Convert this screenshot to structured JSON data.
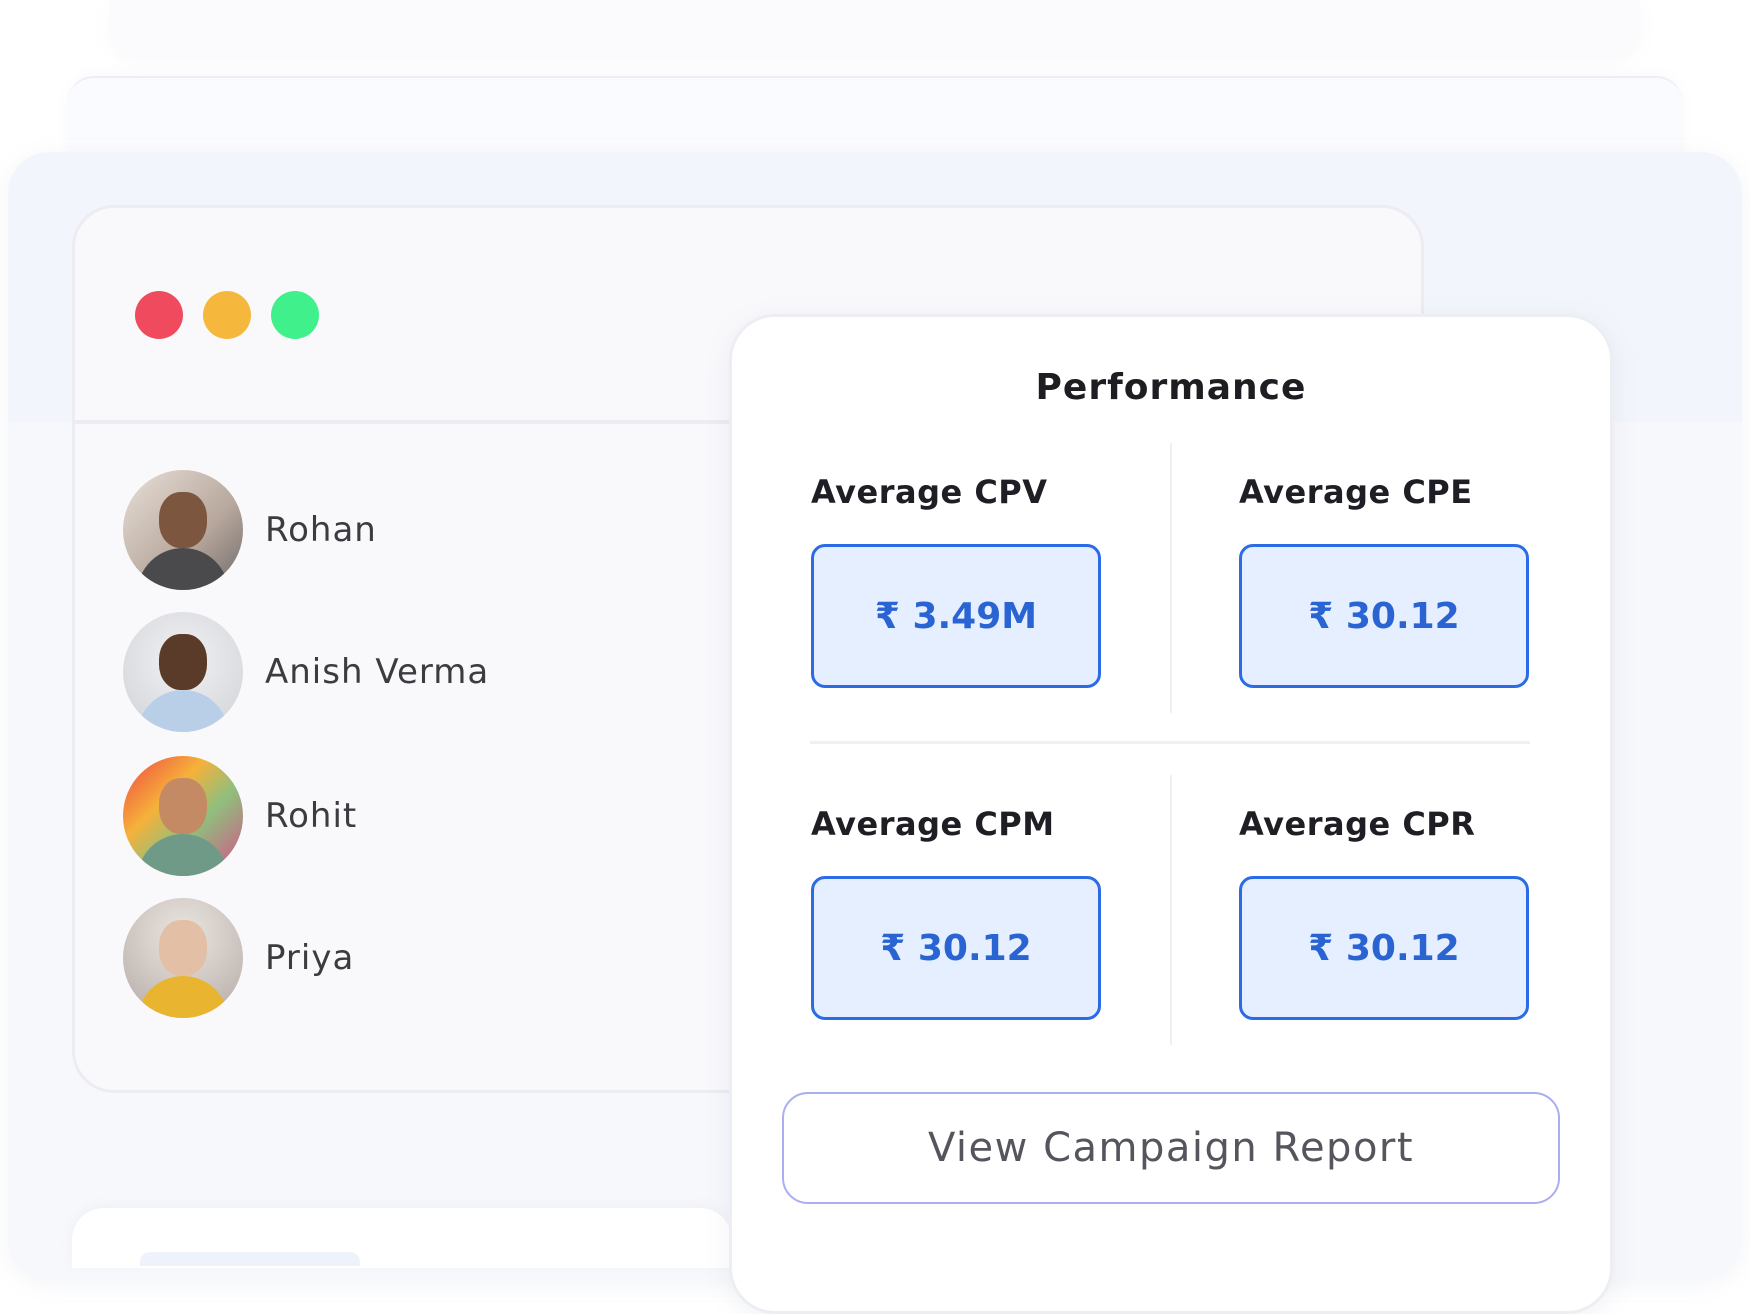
{
  "window_controls": [
    "close",
    "minimize",
    "maximize"
  ],
  "users": [
    {
      "name": "Rohan"
    },
    {
      "name": "Anish Verma"
    },
    {
      "name": "Rohit"
    },
    {
      "name": "Priya"
    }
  ],
  "performance": {
    "title": "Performance",
    "metrics": [
      {
        "label": "Average CPV",
        "value": "₹ 3.49M"
      },
      {
        "label": "Average CPE",
        "value": "₹ 30.12"
      },
      {
        "label": "Average CPM",
        "value": "₹ 30.12"
      },
      {
        "label": "Average CPR",
        "value": "₹ 30.12"
      }
    ],
    "report_button": "View Campaign Report"
  },
  "colors": {
    "close": "#f04a5e",
    "minimize": "#f5b83d",
    "maximize": "#3ff08b",
    "accent": "#2c6be6",
    "metric_bg": "#e5efff"
  }
}
